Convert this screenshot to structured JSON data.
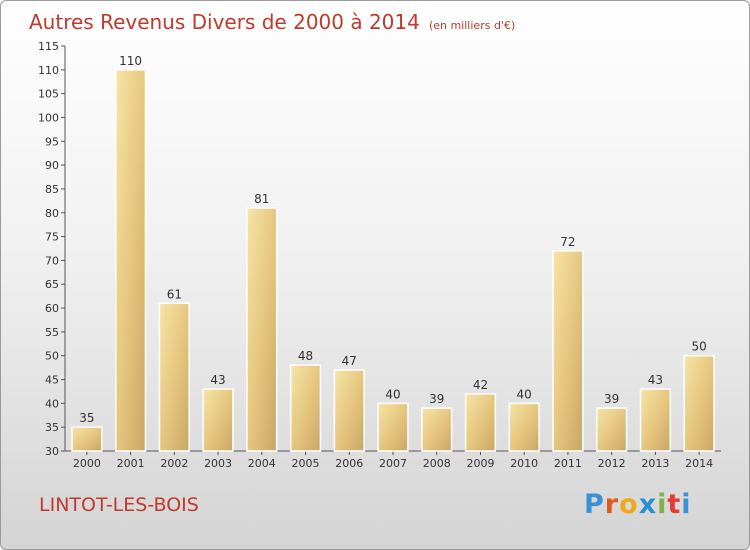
{
  "header": {
    "title": "Autres Revenus Divers de 2000 à 2014",
    "subtitle": "(en milliers d'€)"
  },
  "footer": {
    "commune": "LINTOT-LES-BOIS",
    "logo_letters": [
      "P",
      "r",
      "o",
      "x",
      "i",
      "t",
      "i"
    ],
    "logo_colors": [
      "#3a8fd6",
      "#e05a1c",
      "#f0a81c",
      "#2a8fd0",
      "#7cb342",
      "#e53935",
      "#3a8fd6"
    ]
  },
  "chart_data": {
    "type": "bar",
    "title": "Autres Revenus Divers de 2000 à 2014",
    "subtitle": "(en milliers d'€)",
    "categories": [
      "2000",
      "2001",
      "2002",
      "2003",
      "2004",
      "2005",
      "2006",
      "2007",
      "2008",
      "2009",
      "2010",
      "2011",
      "2012",
      "2013",
      "2014"
    ],
    "values": [
      35,
      110,
      61,
      43,
      81,
      48,
      47,
      40,
      39,
      42,
      40,
      72,
      39,
      43,
      50
    ],
    "ylim": [
      30,
      115
    ],
    "yticks": [
      30,
      35,
      40,
      45,
      50,
      55,
      60,
      65,
      70,
      75,
      80,
      85,
      90,
      95,
      100,
      105,
      110,
      115
    ],
    "grid": false,
    "data_labels": true,
    "bar_color": "#e9cc84",
    "text_color": "#c0392b"
  }
}
